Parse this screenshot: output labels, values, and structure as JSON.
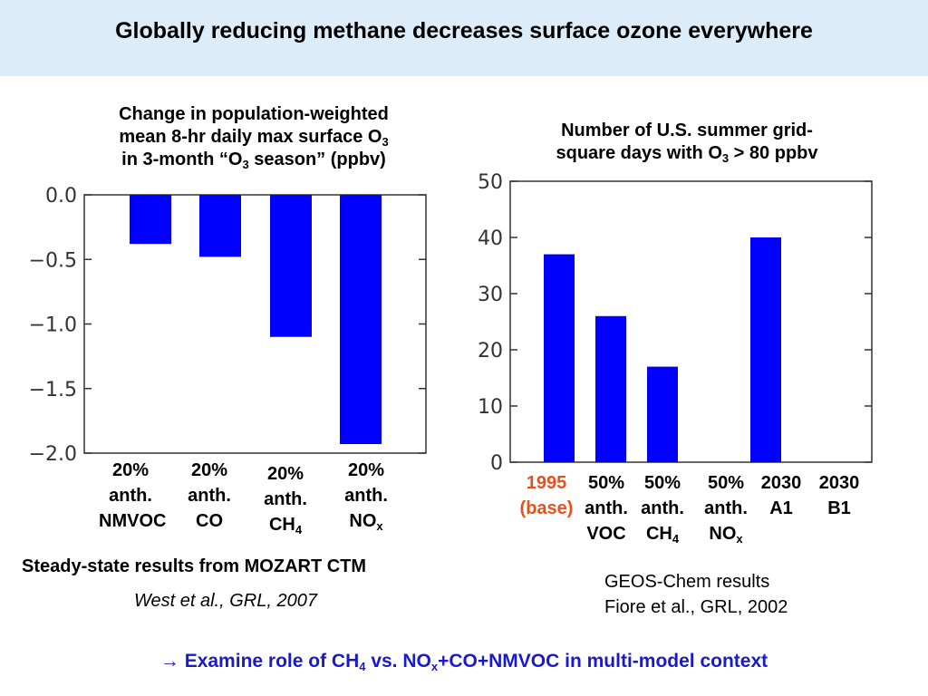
{
  "slide_title": "Globally reducing methane decreases surface ozone everywhere",
  "left_title": {
    "line1": "Change in population-weighted",
    "line2_pre": "mean 8-hr daily max surface O",
    "line2_sub": "3",
    "line3_pre": "in 3-month “O",
    "line3_sub": "3",
    "line3_post": " season” (ppbv)"
  },
  "right_title": {
    "line1": "Number of U.S. summer grid-",
    "line2_pre": "square days with O",
    "line2_sub": "3",
    "line2_post": " > 80 ppbv"
  },
  "left_categories": [
    {
      "l1": "20%",
      "l2": "anth.",
      "l3": "NMVOC",
      "sub": ""
    },
    {
      "l1": "20%",
      "l2": "anth.",
      "l3": "CO",
      "sub": ""
    },
    {
      "l1": "20%",
      "l2": "anth.",
      "l3": "CH",
      "sub": "4"
    },
    {
      "l1": "20%",
      "l2": "anth.",
      "l3": "NO",
      "sub": "x"
    }
  ],
  "right_categories": [
    {
      "l1": "1995",
      "l2": "(base)",
      "l3": "",
      "sub": ""
    },
    {
      "l1": "50%",
      "l2": "anth.",
      "l3": "VOC",
      "sub": ""
    },
    {
      "l1": "50%",
      "l2": "anth.",
      "l3": "CH",
      "sub": "4"
    },
    {
      "l1": "50%",
      "l2": "anth.",
      "l3": "NO",
      "sub": "x"
    },
    {
      "l1": "2030",
      "l2": "A1",
      "l3": "",
      "sub": ""
    },
    {
      "l1": "2030",
      "l2": "B1",
      "l3": "",
      "sub": ""
    }
  ],
  "notes": {
    "mozart": "Steady-state results from MOZART CTM",
    "west": "West et al., GRL, 2007",
    "geos_line1": "GEOS-Chem results",
    "geos_line2": "Fiore et al., GRL, 2002"
  },
  "bottom_line": {
    "arrow": "→",
    "pre": " Examine role of CH",
    "sub1": "4",
    "mid": " vs. NO",
    "sub2": "x",
    "post": "+CO+NMVOC in multi-model context"
  },
  "colors": {
    "bar": "#0000ff",
    "header_bg": "#dcecf9",
    "base_label": "#e8501c",
    "bottom_text": "#1a1acc"
  },
  "chart_data": [
    {
      "type": "bar",
      "categories": [
        "20% anth. NMVOC",
        "20% anth. CO",
        "20% anth. CH4",
        "20% anth. NOx"
      ],
      "values": [
        -0.38,
        -0.48,
        -1.1,
        -1.93
      ],
      "ylim": [
        -2.0,
        0.0
      ],
      "yticks": [
        0.0,
        -0.5,
        -1.0,
        -1.5,
        -2.0
      ],
      "ytick_labels": [
        "0.0",
        "−0.5",
        "−1.0",
        "−1.5",
        "−2.0"
      ],
      "grid": false
    },
    {
      "type": "bar",
      "categories": [
        "1995 (base)",
        "50% anth. VOC",
        "50% anth. CH4",
        "50% anth. NOx",
        "2030 A1",
        "2030 B1"
      ],
      "values": [
        37,
        26,
        17,
        0,
        40,
        0
      ],
      "ylim": [
        0,
        50
      ],
      "yticks": [
        0,
        10,
        20,
        30,
        40,
        50
      ],
      "ytick_labels": [
        "0",
        "10",
        "20",
        "30",
        "40",
        "50"
      ],
      "grid": false
    }
  ]
}
